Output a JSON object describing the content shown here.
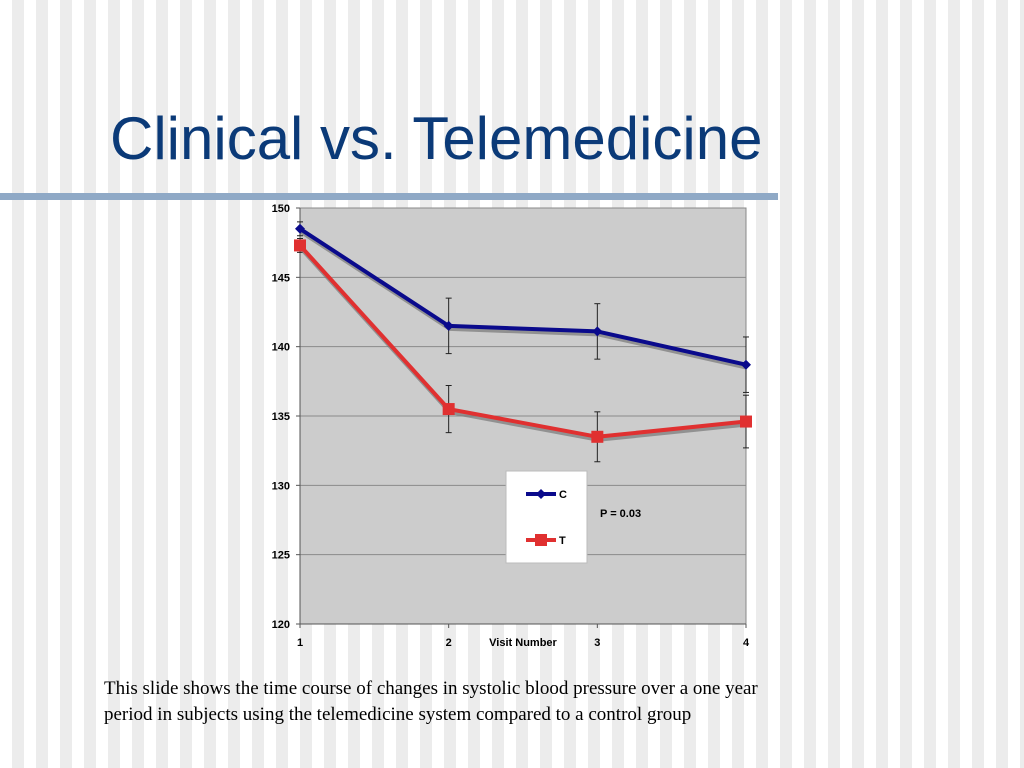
{
  "slide": {
    "title": "Clinical vs. Telemedicine",
    "caption_line1": "This slide shows the time course of changes in systolic blood pressure over a one year",
    "caption_line2": "period  in subjects using the telemedicine system compared to a control group"
  },
  "chart_data": {
    "type": "line",
    "x": [
      1,
      2,
      3,
      4
    ],
    "xlabel": "Visit Number",
    "ylabel": "",
    "ylim": [
      120,
      150
    ],
    "yticks": [
      120,
      125,
      130,
      135,
      140,
      145,
      150
    ],
    "grid": true,
    "series": [
      {
        "name": "C",
        "values": [
          148.5,
          141.5,
          141.1,
          138.7
        ],
        "errors": [
          0.5,
          2.0,
          2.0,
          2.0
        ],
        "color": "#0a0a8c",
        "marker": "diamond"
      },
      {
        "name": "T",
        "values": [
          147.3,
          135.5,
          133.5,
          134.6
        ],
        "errors": [
          0.5,
          1.7,
          1.8,
          1.9
        ],
        "color": "#e03030",
        "marker": "square"
      }
    ],
    "legend_position": "center-bottom",
    "annotation": "P = 0.03",
    "plot_background": "#cccccc"
  }
}
